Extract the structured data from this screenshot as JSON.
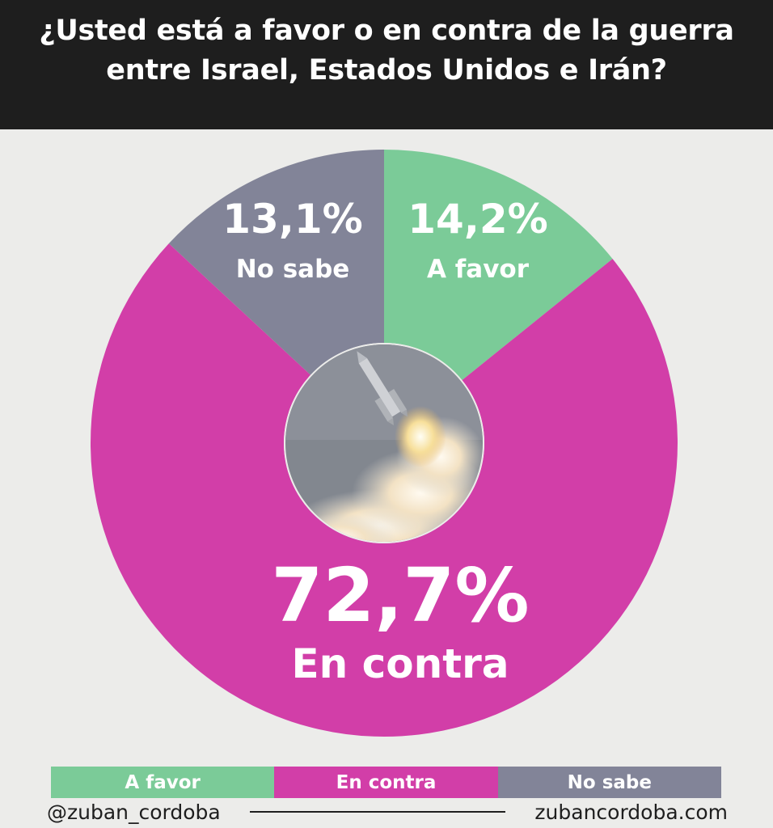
{
  "header": {
    "title_line1": "¿Usted está a favor o en contra de la guerra",
    "title_line2": "entre Israel, Estados Unidos e Irán?"
  },
  "colors": {
    "background": "#ececea",
    "header_bg": "#1e1e1e",
    "a_favor": "#7bcb98",
    "en_contra": "#d23ea8",
    "no_sabe": "#828498"
  },
  "chart_data": {
    "type": "pie",
    "style": "donut with photo in center (missile launch)",
    "slices": [
      {
        "key": "a_favor",
        "label": "A favor",
        "value": 14.2,
        "value_text": "14,2%",
        "color": "#7bcb98"
      },
      {
        "key": "en_contra",
        "label": "En contra",
        "value": 72.7,
        "value_text": "72,7%",
        "color": "#d23ea8"
      },
      {
        "key": "no_sabe",
        "label": "No sabe",
        "value": 13.1,
        "value_text": "13,1%",
        "color": "#828498"
      }
    ],
    "start_angle_deg": 0,
    "direction": "clockwise",
    "legend_placement": "bottom",
    "center_image_icon": "missile-launch-icon"
  },
  "legend": {
    "items": [
      {
        "label": "A favor",
        "color": "#7bcb98"
      },
      {
        "label": "En contra",
        "color": "#d23ea8"
      },
      {
        "label": "No sabe",
        "color": "#828498"
      }
    ]
  },
  "footer": {
    "handle": "@zuban_cordoba",
    "website": "zubancordoba.com"
  }
}
